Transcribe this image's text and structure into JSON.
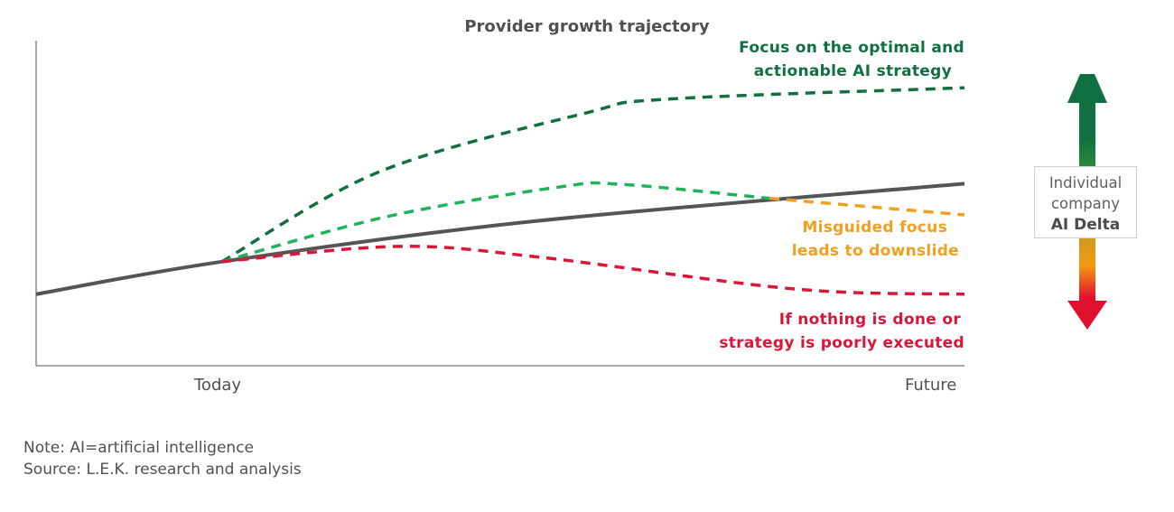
{
  "chart_data": {
    "type": "line",
    "title": "Provider growth trajectory",
    "xlabel": "",
    "ylabel": "",
    "x_tick_labels": [
      {
        "x": 20,
        "label": "Today"
      },
      {
        "x": 100,
        "label": "Future"
      }
    ],
    "xlim": [
      0,
      100
    ],
    "ylim": [
      0,
      100
    ],
    "grid": false,
    "series": [
      {
        "id": "baseline",
        "color": "#555555",
        "style": "solid",
        "points": [
          [
            0,
            22
          ],
          [
            20,
            32
          ],
          [
            53.5,
            44.4
          ],
          [
            100,
            56
          ]
        ]
      },
      {
        "id": "optimal",
        "color": "#11703f",
        "style": "dashed",
        "points": [
          [
            20,
            32
          ],
          [
            37,
            59.7
          ],
          [
            59.3,
            77.8
          ],
          [
            68,
            82
          ],
          [
            100,
            85.5
          ]
        ]
      },
      {
        "id": "misguided-rise",
        "color": "#1fb35a",
        "style": "dashed",
        "points": [
          [
            20,
            32
          ],
          [
            38,
            46
          ],
          [
            56.4,
            55
          ],
          [
            63,
            55.8
          ],
          [
            79,
            51.5
          ]
        ]
      },
      {
        "id": "misguided-fall",
        "color": "#f0a020",
        "style": "dashed",
        "points": [
          [
            79,
            51.5
          ],
          [
            100,
            46.4
          ]
        ]
      },
      {
        "id": "nothing-done",
        "color": "#d8173a",
        "style": "dashed",
        "points": [
          [
            20,
            32
          ],
          [
            39,
            36.7
          ],
          [
            54.5,
            33.3
          ],
          [
            81.7,
            23.6
          ],
          [
            100,
            22
          ]
        ]
      }
    ],
    "annotations": [
      {
        "lines": [
          "Focus on the optimal and",
          "actionable AI strategy"
        ],
        "color": "#11703f"
      },
      {
        "lines": [
          "Misguided focus",
          "leads to downslide"
        ],
        "color": "#f0a020"
      },
      {
        "lines": [
          "If nothing is done or",
          "strategy is poorly executed"
        ],
        "color": "#d8173a"
      }
    ]
  },
  "delta_indicator": {
    "line1": "Individual",
    "line2": "company",
    "line3": "AI Delta",
    "up_color": "#11703f",
    "down_color": "#e0112f",
    "mid_color": "#f39a10"
  },
  "footer": {
    "note": "Note: AI=artificial intelligence",
    "source": "Source: L.E.K. research and analysis"
  }
}
